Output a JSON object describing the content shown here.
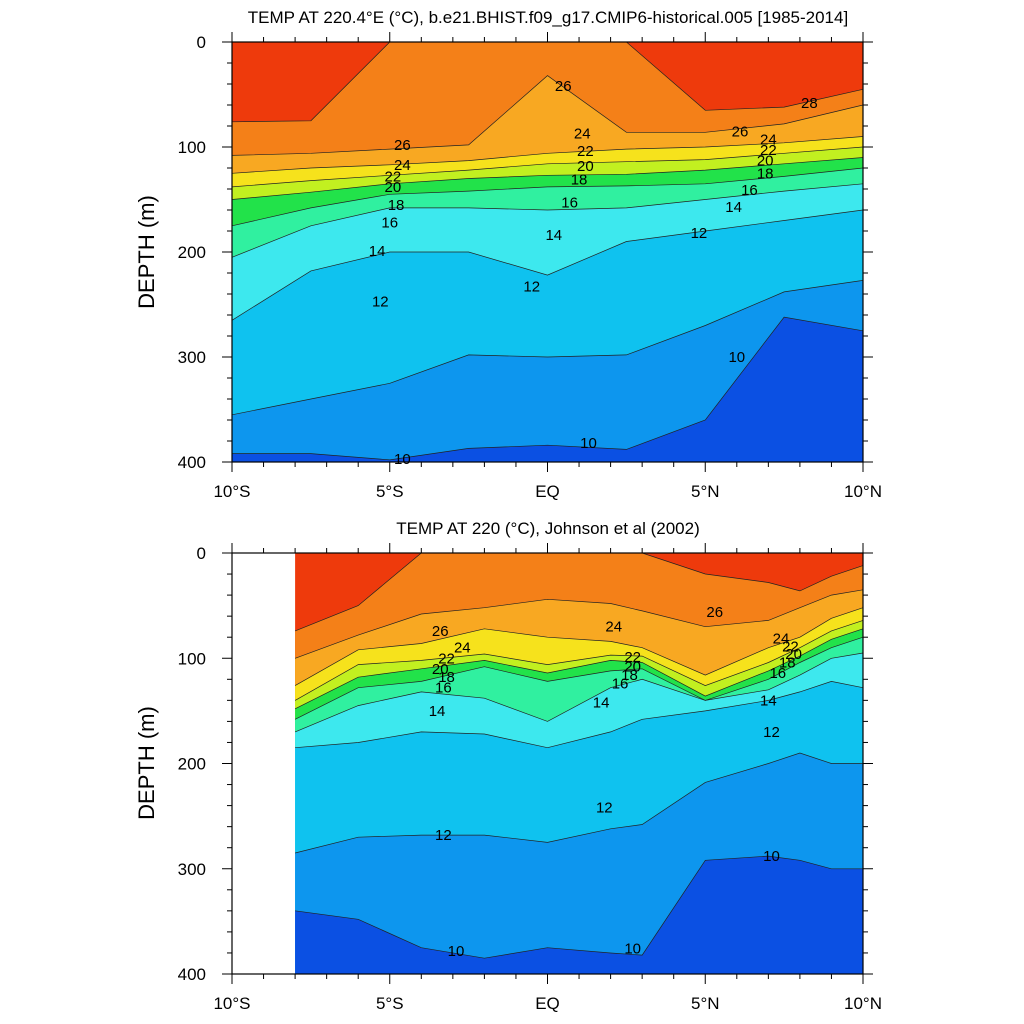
{
  "chart_data": [
    {
      "type": "filled-contour",
      "title": "TEMP AT 220.4°E (°C), b.e21.BHIST.f09_g17.CMIP6-historical.005 [1985-2014]",
      "xlabel": "",
      "ylabel": "DEPTH (m)",
      "xlim": [
        -10,
        10
      ],
      "ylim": [
        400,
        0
      ],
      "y_reversed": true,
      "x_ticks": [
        -10,
        -5,
        0,
        5,
        10
      ],
      "x_tick_labels": [
        "10°S",
        "5°S",
        "EQ",
        "5°N",
        "10°N"
      ],
      "y_ticks": [
        0,
        100,
        200,
        300,
        400
      ],
      "y_tick_labels": [
        "0",
        "100",
        "200",
        "300",
        "400"
      ],
      "data_x_range": [
        -10,
        10
      ],
      "x": [
        -10,
        -7.5,
        -5,
        -2.5,
        0,
        2.5,
        5,
        7.5,
        10
      ],
      "isotherm_depths": [
        {
          "level": 10,
          "depth": [
            392,
            392,
            398,
            387,
            384,
            388,
            360,
            262,
            275
          ]
        },
        {
          "level": 12,
          "depth": [
            355,
            340,
            325,
            298,
            300,
            298,
            270,
            238,
            227
          ]
        },
        {
          "level": 14,
          "depth": [
            265,
            218,
            200,
            200,
            222,
            190,
            180,
            170,
            160
          ]
        },
        {
          "level": 16,
          "depth": [
            205,
            175,
            158,
            158,
            160,
            158,
            150,
            142,
            135
          ]
        },
        {
          "level": 18,
          "depth": [
            175,
            158,
            145,
            142,
            138,
            137,
            135,
            128,
            120
          ]
        },
        {
          "level": 20,
          "depth": [
            150,
            143,
            135,
            130,
            127,
            126,
            122,
            116,
            110
          ]
        },
        {
          "level": 22,
          "depth": [
            138,
            132,
            127,
            122,
            116,
            114,
            112,
            106,
            100
          ]
        },
        {
          "level": 24,
          "depth": [
            125,
            120,
            117,
            113,
            106,
            102,
            100,
            96,
            90
          ]
        },
        {
          "level": 26,
          "depth": [
            108,
            106,
            102,
            98,
            32,
            86,
            86,
            78,
            60
          ]
        },
        {
          "level": 28,
          "depth": [
            76,
            75,
            0,
            0,
            0,
            0,
            65,
            62,
            45
          ]
        }
      ],
      "contour_labels": [
        {
          "text": "26",
          "x": 0.5,
          "y": 42
        },
        {
          "text": "28",
          "x": 8.3,
          "y": 58
        },
        {
          "text": "26",
          "x": 6.1,
          "y": 85
        },
        {
          "text": "24",
          "x": 7.0,
          "y": 93
        },
        {
          "text": "22",
          "x": 7.0,
          "y": 103
        },
        {
          "text": "20",
          "x": 6.9,
          "y": 113
        },
        {
          "text": "18",
          "x": 6.9,
          "y": 125
        },
        {
          "text": "16",
          "x": 6.4,
          "y": 141
        },
        {
          "text": "14",
          "x": 5.9,
          "y": 157
        },
        {
          "text": "12",
          "x": 4.8,
          "y": 182
        },
        {
          "text": "24",
          "x": 1.1,
          "y": 87
        },
        {
          "text": "22",
          "x": 1.2,
          "y": 104
        },
        {
          "text": "20",
          "x": 1.2,
          "y": 118
        },
        {
          "text": "18",
          "x": 1.0,
          "y": 131
        },
        {
          "text": "16",
          "x": 0.7,
          "y": 153
        },
        {
          "text": "14",
          "x": 0.2,
          "y": 184
        },
        {
          "text": "12",
          "x": -0.5,
          "y": 233
        },
        {
          "text": "26",
          "x": -4.6,
          "y": 98
        },
        {
          "text": "24",
          "x": -4.6,
          "y": 117
        },
        {
          "text": "22",
          "x": -4.9,
          "y": 128
        },
        {
          "text": "20",
          "x": -4.9,
          "y": 138
        },
        {
          "text": "18",
          "x": -4.8,
          "y": 155
        },
        {
          "text": "16",
          "x": -5.0,
          "y": 172
        },
        {
          "text": "14",
          "x": -5.4,
          "y": 199
        },
        {
          "text": "12",
          "x": -5.3,
          "y": 247
        },
        {
          "text": "10",
          "x": 1.3,
          "y": 382
        },
        {
          "text": "10",
          "x": 6.0,
          "y": 300
        },
        {
          "text": "10",
          "x": -4.6,
          "y": 397
        }
      ]
    },
    {
      "type": "filled-contour",
      "title": "TEMP AT 220 (°C), Johnson et al (2002)",
      "xlabel": "",
      "ylabel": "DEPTH (m)",
      "xlim": [
        -10,
        10
      ],
      "ylim": [
        400,
        0
      ],
      "y_reversed": true,
      "x_ticks": [
        -10,
        -5,
        0,
        5,
        10
      ],
      "x_tick_labels": [
        "10°S",
        "5°S",
        "EQ",
        "5°N",
        "10°N"
      ],
      "y_ticks": [
        0,
        100,
        200,
        300,
        400
      ],
      "y_tick_labels": [
        "0",
        "100",
        "200",
        "300",
        "400"
      ],
      "data_x_range": [
        -8,
        10
      ],
      "x": [
        -8,
        -6,
        -4,
        -2,
        0,
        2,
        3,
        5,
        7,
        8,
        9,
        10
      ],
      "isotherm_depths": [
        {
          "level": 10,
          "depth": [
            340,
            348,
            375,
            385,
            375,
            380,
            382,
            292,
            288,
            292,
            300,
            300
          ]
        },
        {
          "level": 12,
          "depth": [
            285,
            270,
            268,
            268,
            275,
            262,
            258,
            218,
            200,
            190,
            200,
            200
          ]
        },
        {
          "level": 14,
          "depth": [
            185,
            180,
            170,
            172,
            185,
            170,
            158,
            150,
            140,
            132,
            122,
            128
          ]
        },
        {
          "level": 16,
          "depth": [
            170,
            145,
            132,
            138,
            160,
            128,
            120,
            140,
            130,
            116,
            100,
            95
          ]
        },
        {
          "level": 18,
          "depth": [
            158,
            128,
            122,
            108,
            122,
            112,
            110,
            140,
            120,
            104,
            90,
            80
          ]
        },
        {
          "level": 20,
          "depth": [
            148,
            118,
            110,
            102,
            114,
            102,
            104,
            136,
            112,
            98,
            82,
            72
          ]
        },
        {
          "level": 22,
          "depth": [
            140,
            106,
            102,
            96,
            106,
            97,
            98,
            126,
            104,
            90,
            74,
            64
          ]
        },
        {
          "level": 24,
          "depth": [
            126,
            92,
            86,
            72,
            80,
            84,
            90,
            116,
            90,
            80,
            62,
            52
          ]
        },
        {
          "level": 26,
          "depth": [
            100,
            78,
            58,
            52,
            44,
            48,
            55,
            70,
            64,
            52,
            40,
            35
          ]
        },
        {
          "level": 28,
          "depth": [
            74,
            50,
            0,
            0,
            0,
            0,
            0,
            20,
            28,
            36,
            22,
            12
          ]
        }
      ],
      "contour_labels": [
        {
          "text": "26",
          "x": 5.3,
          "y": 56
        },
        {
          "text": "24",
          "x": 2.1,
          "y": 70
        },
        {
          "text": "26",
          "x": -3.4,
          "y": 74
        },
        {
          "text": "24",
          "x": -2.7,
          "y": 90
        },
        {
          "text": "22",
          "x": -3.2,
          "y": 100
        },
        {
          "text": "20",
          "x": -3.4,
          "y": 110
        },
        {
          "text": "18",
          "x": -3.2,
          "y": 118
        },
        {
          "text": "16",
          "x": -3.3,
          "y": 128
        },
        {
          "text": "14",
          "x": -3.5,
          "y": 150
        },
        {
          "text": "22",
          "x": 2.7,
          "y": 99
        },
        {
          "text": "20",
          "x": 2.7,
          "y": 108
        },
        {
          "text": "18",
          "x": 2.6,
          "y": 116
        },
        {
          "text": "16",
          "x": 2.3,
          "y": 124
        },
        {
          "text": "14",
          "x": 1.7,
          "y": 142
        },
        {
          "text": "24",
          "x": 7.4,
          "y": 81
        },
        {
          "text": "22",
          "x": 7.7,
          "y": 89
        },
        {
          "text": "20",
          "x": 7.8,
          "y": 96
        },
        {
          "text": "18",
          "x": 7.6,
          "y": 104
        },
        {
          "text": "16",
          "x": 7.3,
          "y": 114
        },
        {
          "text": "14",
          "x": 7.0,
          "y": 140
        },
        {
          "text": "12",
          "x": 7.1,
          "y": 170
        },
        {
          "text": "12",
          "x": 1.8,
          "y": 242
        },
        {
          "text": "12",
          "x": -3.3,
          "y": 268
        },
        {
          "text": "10",
          "x": 7.1,
          "y": 288
        },
        {
          "text": "10",
          "x": -2.9,
          "y": 378
        },
        {
          "text": "10",
          "x": 2.7,
          "y": 376
        }
      ]
    }
  ],
  "colors": {
    "below_10": "#0b50e3",
    "10_12": "#0d96ee",
    "12_14": "#0fc2ef",
    "14_16": "#3de8ee",
    "16_18": "#30f0a0",
    "18_20": "#22e24a",
    "20_22": "#c2f020",
    "22_24": "#f6e21c",
    "24_26": "#f8a822",
    "26_28": "#f48018",
    "above_28": "#ee3a0c"
  }
}
